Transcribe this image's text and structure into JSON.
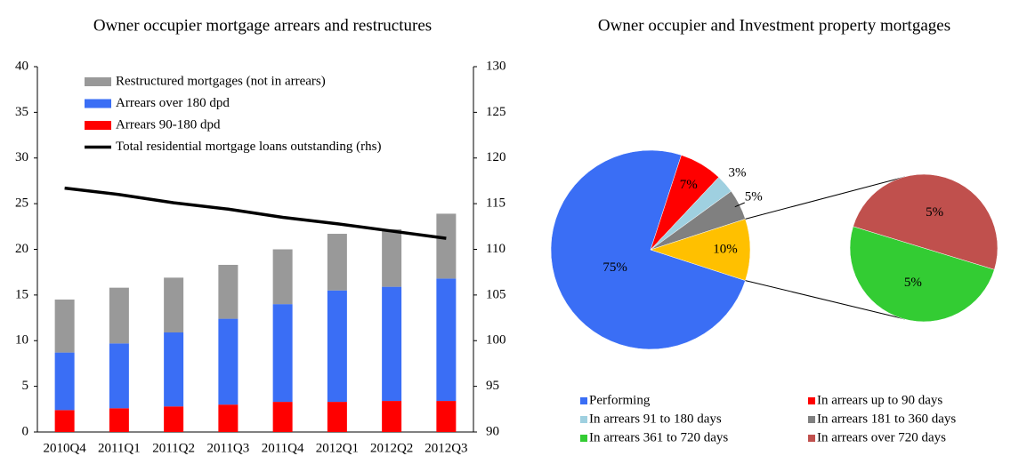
{
  "chart_data": [
    {
      "type": "bar",
      "stacked": true,
      "title": "Owner occupier mortgage arrears and restructures",
      "categories": [
        "2010Q4",
        "2011Q1",
        "2011Q2",
        "2011Q3",
        "2011Q4",
        "2012Q1",
        "2012Q2",
        "2012Q3"
      ],
      "series": [
        {
          "name": "Restructured mortgages (not in arrears)",
          "color": "#999999",
          "values": [
            5.8,
            6.1,
            6.0,
            5.9,
            6.0,
            6.2,
            6.3,
            7.1
          ]
        },
        {
          "name": "Arrears over 180 dpd",
          "color": "#3a6ef5",
          "values": [
            6.3,
            7.1,
            8.1,
            9.4,
            10.7,
            12.2,
            12.5,
            13.4
          ]
        },
        {
          "name": "Arrears 90-180 dpd",
          "color": "#ff0000",
          "values": [
            2.4,
            2.6,
            2.8,
            3.0,
            3.3,
            3.3,
            3.4,
            3.4
          ]
        },
        {
          "name": "Total residential mortgage loans outstanding (rhs)",
          "color": "#000000",
          "type": "line",
          "axis": "y2",
          "values": [
            116.7,
            116.0,
            115.1,
            114.4,
            113.5,
            112.8,
            112.0,
            111.2
          ]
        }
      ],
      "ylim": [
        0,
        40
      ],
      "yticks": [
        0,
        5,
        10,
        15,
        20,
        25,
        30,
        35,
        40
      ],
      "y2lim": [
        90,
        130
      ],
      "y2ticks": [
        90,
        95,
        100,
        105,
        110,
        115,
        120,
        125,
        130
      ],
      "legend": "top-left"
    },
    {
      "type": "pie-of-pie",
      "title": "Owner occupier and Investment property mortgages",
      "categories": [
        "Performing",
        "In arrears up to 90 days",
        "In arrears 91 to 180 days",
        "In arrears 181 to 360 days",
        null
      ],
      "values": [
        75,
        7,
        3,
        5,
        10
      ],
      "value_labels": [
        "75%",
        "7%",
        "3%",
        "5%",
        "10%"
      ],
      "colors": [
        "#3a6ef5",
        "#ff0000",
        "#9fd0e0",
        "#808080",
        "#ffc000"
      ],
      "sub_categories": [
        "In arrears 361 to 720 days",
        "In arrears over 720 days"
      ],
      "sub_values": [
        5,
        5
      ],
      "sub_value_labels": [
        "5%",
        "5%"
      ],
      "sub_colors": [
        "#33cc33",
        "#c0504d"
      ],
      "legend": "bottom"
    }
  ]
}
